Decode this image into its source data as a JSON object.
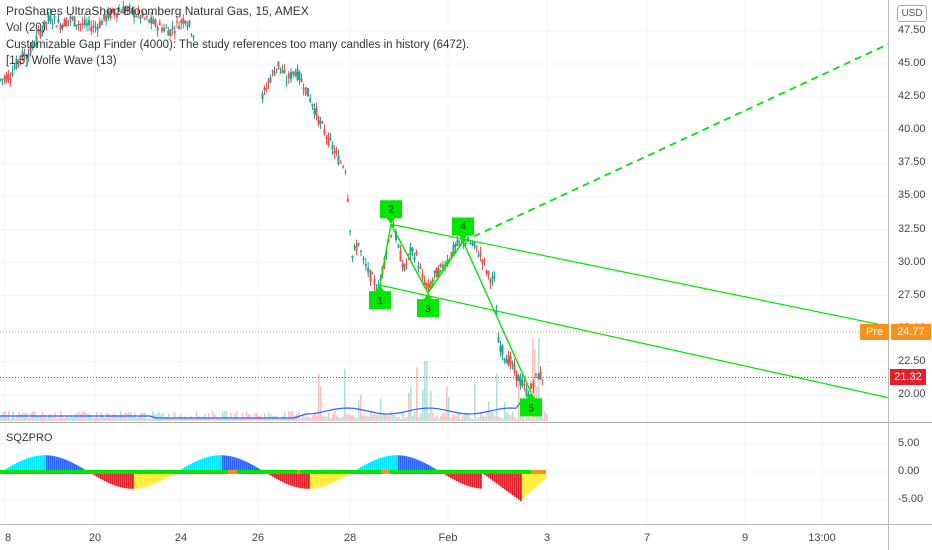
{
  "legend": {
    "title": "ProShares UltraShort Bloomberg Natural Gas, 15, AMEX",
    "vol": "Vol (20)",
    "gap_finder": "Customizable Gap Finder (4000): The study references too many candles in history (6472).",
    "wolfe": "[1.5] Wolfe Wave (13)"
  },
  "oscillator": {
    "title": "SQZPRO"
  },
  "currency_label": "USD",
  "pre_market": {
    "label": "Pre",
    "value": "24.77",
    "color": "#f7931a"
  },
  "last_price": {
    "value": "21.32",
    "color": "#e0202a"
  },
  "wolfe_points": [
    "1",
    "2",
    "3",
    "4",
    "5"
  ],
  "colors": {
    "up": "#26a69a",
    "down": "#ef5350",
    "wolfe": "#00e600",
    "vol_ma": "#2962ff"
  },
  "chart_data": {
    "type": "candlestick",
    "price_axis": {
      "ticks": [
        "47.50",
        "45.00",
        "42.50",
        "40.00",
        "37.50",
        "35.00",
        "32.50",
        "30.00",
        "27.50",
        "25.00",
        "22.50",
        "20.00"
      ]
    },
    "oscillator_axis": {
      "ticks": [
        "5.00",
        "0.00",
        "-5.00"
      ]
    },
    "time_axis": {
      "ticks": [
        "8",
        "20",
        "24",
        "26",
        "28",
        "Feb",
        "3",
        "7",
        "9",
        "13:00"
      ]
    },
    "price_path": [
      [
        0,
        43.8
      ],
      [
        10,
        44.2
      ],
      [
        20,
        45.5
      ],
      [
        30,
        46
      ],
      [
        40,
        47.5
      ],
      [
        50,
        48.5
      ],
      [
        60,
        48
      ],
      [
        70,
        48.4
      ],
      [
        80,
        48
      ],
      [
        95,
        47.8
      ],
      [
        110,
        48.8
      ],
      [
        125,
        49.2
      ],
      [
        140,
        48.6
      ],
      [
        155,
        48
      ],
      [
        170,
        47.5
      ],
      [
        185,
        48.5
      ],
      [
        195,
        47
      ],
      [
        262,
        42.5
      ],
      [
        270,
        44
      ],
      [
        278,
        45
      ],
      [
        286,
        43.8
      ],
      [
        295,
        44.5
      ],
      [
        303,
        43.5
      ],
      [
        312,
        42
      ],
      [
        320,
        40.5
      ],
      [
        330,
        39
      ],
      [
        338,
        37.8
      ],
      [
        345,
        37.2
      ],
      [
        352,
        30.5
      ],
      [
        358,
        31.5
      ],
      [
        363,
        30
      ],
      [
        370,
        29
      ],
      [
        378,
        28
      ],
      [
        386,
        31
      ],
      [
        393,
        32.9
      ],
      [
        398,
        31
      ],
      [
        404,
        29.5
      ],
      [
        410,
        30.8
      ],
      [
        416,
        30.5
      ],
      [
        422,
        28.8
      ],
      [
        428,
        28
      ],
      [
        434,
        29
      ],
      [
        440,
        29.5
      ],
      [
        447,
        30.2
      ],
      [
        455,
        31.2
      ],
      [
        463,
        31.7
      ],
      [
        470,
        31.5
      ],
      [
        476,
        31
      ],
      [
        482,
        30.3
      ],
      [
        488,
        29
      ],
      [
        494,
        28.6
      ],
      [
        498,
        24
      ],
      [
        504,
        23
      ],
      [
        510,
        22.5
      ],
      [
        516,
        21.5
      ],
      [
        522,
        20.8
      ],
      [
        528,
        20
      ],
      [
        533,
        21
      ],
      [
        538,
        21.5
      ],
      [
        544,
        21.3
      ]
    ],
    "wolfe_wave": {
      "points": [
        [
          "1",
          380,
          28.3
        ],
        [
          "2",
          391,
          32.9
        ],
        [
          "3",
          428,
          27.7
        ],
        [
          "4",
          463,
          31.6
        ],
        [
          "5",
          531,
          20.2
        ]
      ]
    }
  }
}
